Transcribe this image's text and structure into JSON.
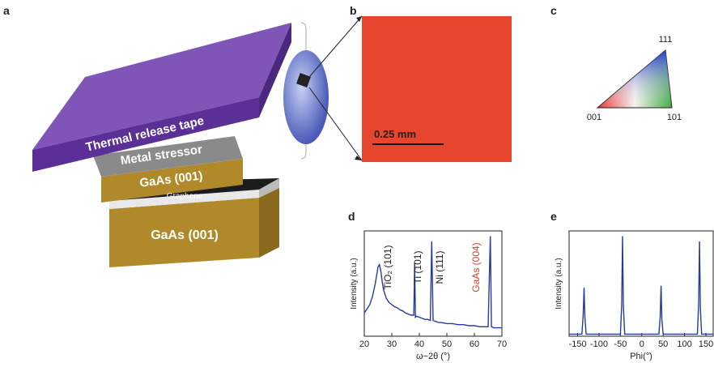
{
  "panels": {
    "a": {
      "label": "a",
      "layers": [
        "Thermal release tape",
        "Metal stressor",
        "GaAs (001)",
        "Graphene",
        "GaAs (001)"
      ]
    },
    "b": {
      "label": "b",
      "scale_bar": "0.25 mm"
    },
    "c": {
      "label": "c",
      "corners": [
        "111",
        "001",
        "101"
      ]
    },
    "d": {
      "label": "d"
    },
    "e": {
      "label": "e"
    }
  },
  "chart_data": [
    {
      "type": "line",
      "xlabel": "ω−2θ (°)",
      "ylabel": "Intensity (a.u.)",
      "color": "#2b3a9a",
      "xlim": [
        20,
        70
      ],
      "xticks": [
        20,
        30,
        40,
        50,
        60,
        70
      ],
      "ylim": [
        0,
        100
      ],
      "x": [
        20,
        21,
        22,
        23,
        24,
        24.5,
        25,
        25.5,
        26,
        26.5,
        27,
        28,
        29,
        30,
        31,
        32,
        33,
        34,
        35,
        36,
        37,
        38,
        38.3,
        38.6,
        39,
        40,
        41,
        42,
        43,
        44,
        44.5,
        45,
        46,
        47,
        48,
        50,
        52,
        54,
        56,
        58,
        60,
        62,
        64,
        65,
        65.8,
        66.2,
        67,
        68,
        70
      ],
      "values": [
        22,
        26,
        30,
        38,
        50,
        58,
        66,
        68,
        62,
        52,
        44,
        36,
        32,
        30,
        28,
        27,
        25,
        24,
        22,
        21,
        20,
        20,
        70,
        18,
        19,
        18,
        17,
        16,
        16,
        15,
        90,
        15,
        14,
        13,
        13,
        12,
        12,
        11,
        11,
        10,
        10,
        9,
        9,
        9,
        95,
        9,
        8,
        8,
        8
      ],
      "annotations": [
        {
          "text": "TiO₂ (101)",
          "color": "#222222"
        },
        {
          "text": "Ti (101)",
          "color": "#222222"
        },
        {
          "text": "Ni (111)",
          "color": "#222222"
        },
        {
          "text": "GaAs (004)",
          "color": "#e0402a"
        }
      ]
    },
    {
      "type": "line",
      "xlabel": "Phi(°)",
      "ylabel": "Intensity (a.u.)",
      "color": "#2b3a9a",
      "xlim": [
        -170,
        167
      ],
      "xticks": [
        -150,
        -100,
        -50,
        0,
        50,
        100,
        150
      ],
      "ylim": [
        0,
        100
      ],
      "x": [
        -170,
        -140,
        -137,
        -135,
        -133,
        -130,
        -50,
        -47,
        -45,
        -43,
        -40,
        40,
        43,
        45,
        47,
        50,
        130,
        133,
        135,
        137,
        140,
        167
      ],
      "values": [
        2,
        2,
        20,
        46,
        18,
        2,
        2,
        30,
        95,
        28,
        2,
        2,
        18,
        48,
        16,
        2,
        2,
        30,
        90,
        26,
        2,
        2
      ]
    }
  ]
}
